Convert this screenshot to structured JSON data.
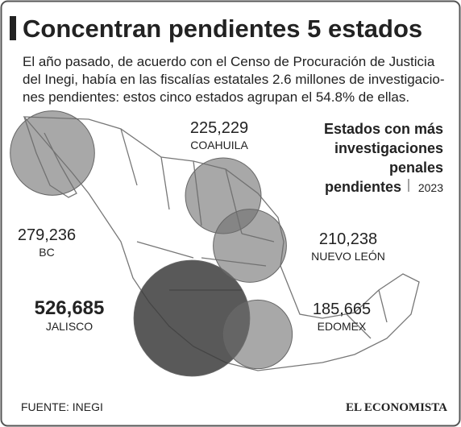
{
  "header": {
    "title": "Concentran pendientes 5 estados",
    "intro_lines": [
      "El año pasado, de acuerdo con el Censo de Procuración de Justicia",
      "del Inegi, había en las fiscalías estatales 2.6 millones de investigacio-",
      "nes pendientes: estos cinco estados agrupan el 54.8% de ellas."
    ]
  },
  "legend": {
    "heading_lines": [
      "Estados con más",
      "investigaciones",
      "penales",
      "pendientes"
    ],
    "year": "2023"
  },
  "states": [
    {
      "name": "BC",
      "value": 279236,
      "value_label": "279,236"
    },
    {
      "name": "COAHUILA",
      "value": 225229,
      "value_label": "225,229"
    },
    {
      "name": "NUEVO LEÓN",
      "value": 210238,
      "value_label": "210,238"
    },
    {
      "name": "JALISCO",
      "value": 526685,
      "value_label": "526,685"
    },
    {
      "name": "EDOMEX",
      "value": 185665,
      "value_label": "185,665"
    }
  ],
  "footer": {
    "source": "FUENTE: INEGI",
    "brand": "EL ECONOMISTA"
  }
}
